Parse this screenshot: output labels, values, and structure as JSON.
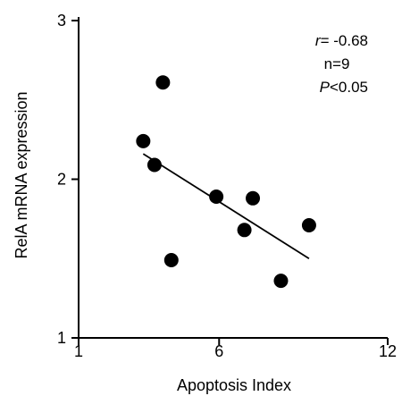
{
  "chart_data": {
    "type": "scatter",
    "title": "",
    "xlabel": "Apoptosis Index",
    "ylabel": "RelA mRNA expression",
    "xlim": [
      1,
      12
    ],
    "ylim": [
      1,
      3
    ],
    "x_ticks": [
      "1",
      "6",
      "12"
    ],
    "y_ticks": [
      "1",
      "2",
      "3"
    ],
    "x_tick_values": [
      1,
      6,
      12
    ],
    "y_tick_values": [
      1,
      2,
      3
    ],
    "grid": false,
    "series": [
      {
        "points": [
          {
            "x": 3.3,
            "y": 2.24
          },
          {
            "x": 3.7,
            "y": 2.09
          },
          {
            "x": 4.0,
            "y": 2.61
          },
          {
            "x": 4.3,
            "y": 1.49
          },
          {
            "x": 5.9,
            "y": 1.89
          },
          {
            "x": 6.9,
            "y": 1.68
          },
          {
            "x": 7.2,
            "y": 1.88
          },
          {
            "x": 8.2,
            "y": 1.36
          },
          {
            "x": 9.2,
            "y": 1.71
          }
        ]
      }
    ],
    "trendline": {
      "x": [
        3.3,
        9.2
      ],
      "y": [
        2.16,
        1.5
      ]
    },
    "annotations": {
      "r_symbol": "r",
      "r_value": "= -0.68",
      "n_text": "n=9",
      "p_symbol": "P",
      "p_value": "<0.05"
    }
  }
}
